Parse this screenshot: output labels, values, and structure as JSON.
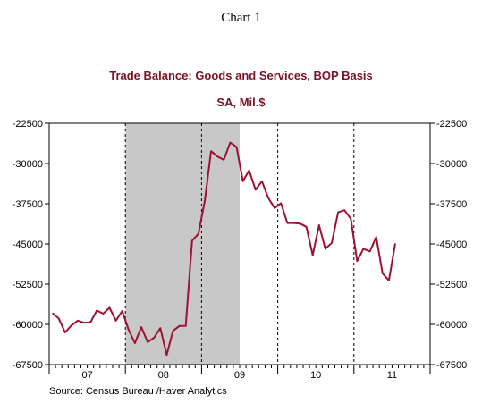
{
  "page": {
    "chart_number": "Chart 1",
    "source": "Source:  Census Bureau /Haver Analytics"
  },
  "colors": {
    "line": "#9b1235",
    "shade": "#c8c8c8",
    "title": "#7a1226",
    "axis": "#000000"
  },
  "chart_data": {
    "type": "line",
    "title": "Trade Balance:  Goods and Services, BOP Basis",
    "subtitle": "SA, Mil.$",
    "xlabel": "",
    "ylabel": "",
    "x_range": [
      "2007-01",
      "2011-12"
    ],
    "ylim": [
      -67500,
      -22500
    ],
    "y_ticks": [
      -22500,
      -30000,
      -37500,
      -45000,
      -52500,
      -60000,
      -67500
    ],
    "y_tick_labels": [
      "-22500",
      "-30000",
      "-37500",
      "-45000",
      "-52500",
      "-60000",
      "-67500"
    ],
    "x_tick_labels": [
      {
        "label": "07",
        "year": 2007
      },
      {
        "label": "08",
        "year": 2008
      },
      {
        "label": "09",
        "year": 2009
      },
      {
        "label": "10",
        "year": 2010
      },
      {
        "label": "11",
        "year": 2011
      }
    ],
    "grid": "vertical dashed lines at year boundaries",
    "shaded_period": {
      "start": "2008-01",
      "end": "2009-06"
    },
    "series": [
      {
        "x": [
          "2007-01",
          "2007-02",
          "2007-03",
          "2007-04",
          "2007-05",
          "2007-06",
          "2007-07",
          "2007-08",
          "2007-09",
          "2007-10",
          "2007-11",
          "2007-12",
          "2008-01",
          "2008-02",
          "2008-03",
          "2008-04",
          "2008-05",
          "2008-06",
          "2008-07",
          "2008-08",
          "2008-09",
          "2008-10",
          "2008-11",
          "2008-12",
          "2009-01",
          "2009-02",
          "2009-03",
          "2009-04",
          "2009-05",
          "2009-06",
          "2009-07",
          "2009-08",
          "2009-09",
          "2009-10",
          "2009-11",
          "2009-12",
          "2010-01",
          "2010-02",
          "2010-03",
          "2010-04",
          "2010-05",
          "2010-06",
          "2010-07",
          "2010-08",
          "2010-09",
          "2010-10",
          "2010-11",
          "2010-12",
          "2011-01",
          "2011-02",
          "2011-03",
          "2011-04",
          "2011-05",
          "2011-06",
          "2011-07"
        ],
        "values": [
          -57900,
          -58900,
          -61500,
          -60200,
          -59300,
          -59700,
          -59600,
          -57400,
          -58000,
          -56900,
          -59300,
          -57500,
          -61000,
          -63500,
          -60500,
          -63300,
          -62500,
          -60700,
          -65700,
          -61200,
          -60300,
          -60300,
          -44400,
          -43100,
          -37000,
          -27700,
          -28700,
          -29300,
          -26100,
          -26900,
          -33300,
          -31300,
          -34900,
          -33300,
          -36400,
          -38300,
          -37400,
          -41100,
          -41100,
          -41200,
          -41800,
          -47100,
          -41500,
          -45900,
          -44800,
          -39100,
          -38700,
          -40300,
          -48200,
          -45900,
          -46400,
          -43700,
          -50500,
          -51800,
          -44900
        ]
      }
    ]
  }
}
